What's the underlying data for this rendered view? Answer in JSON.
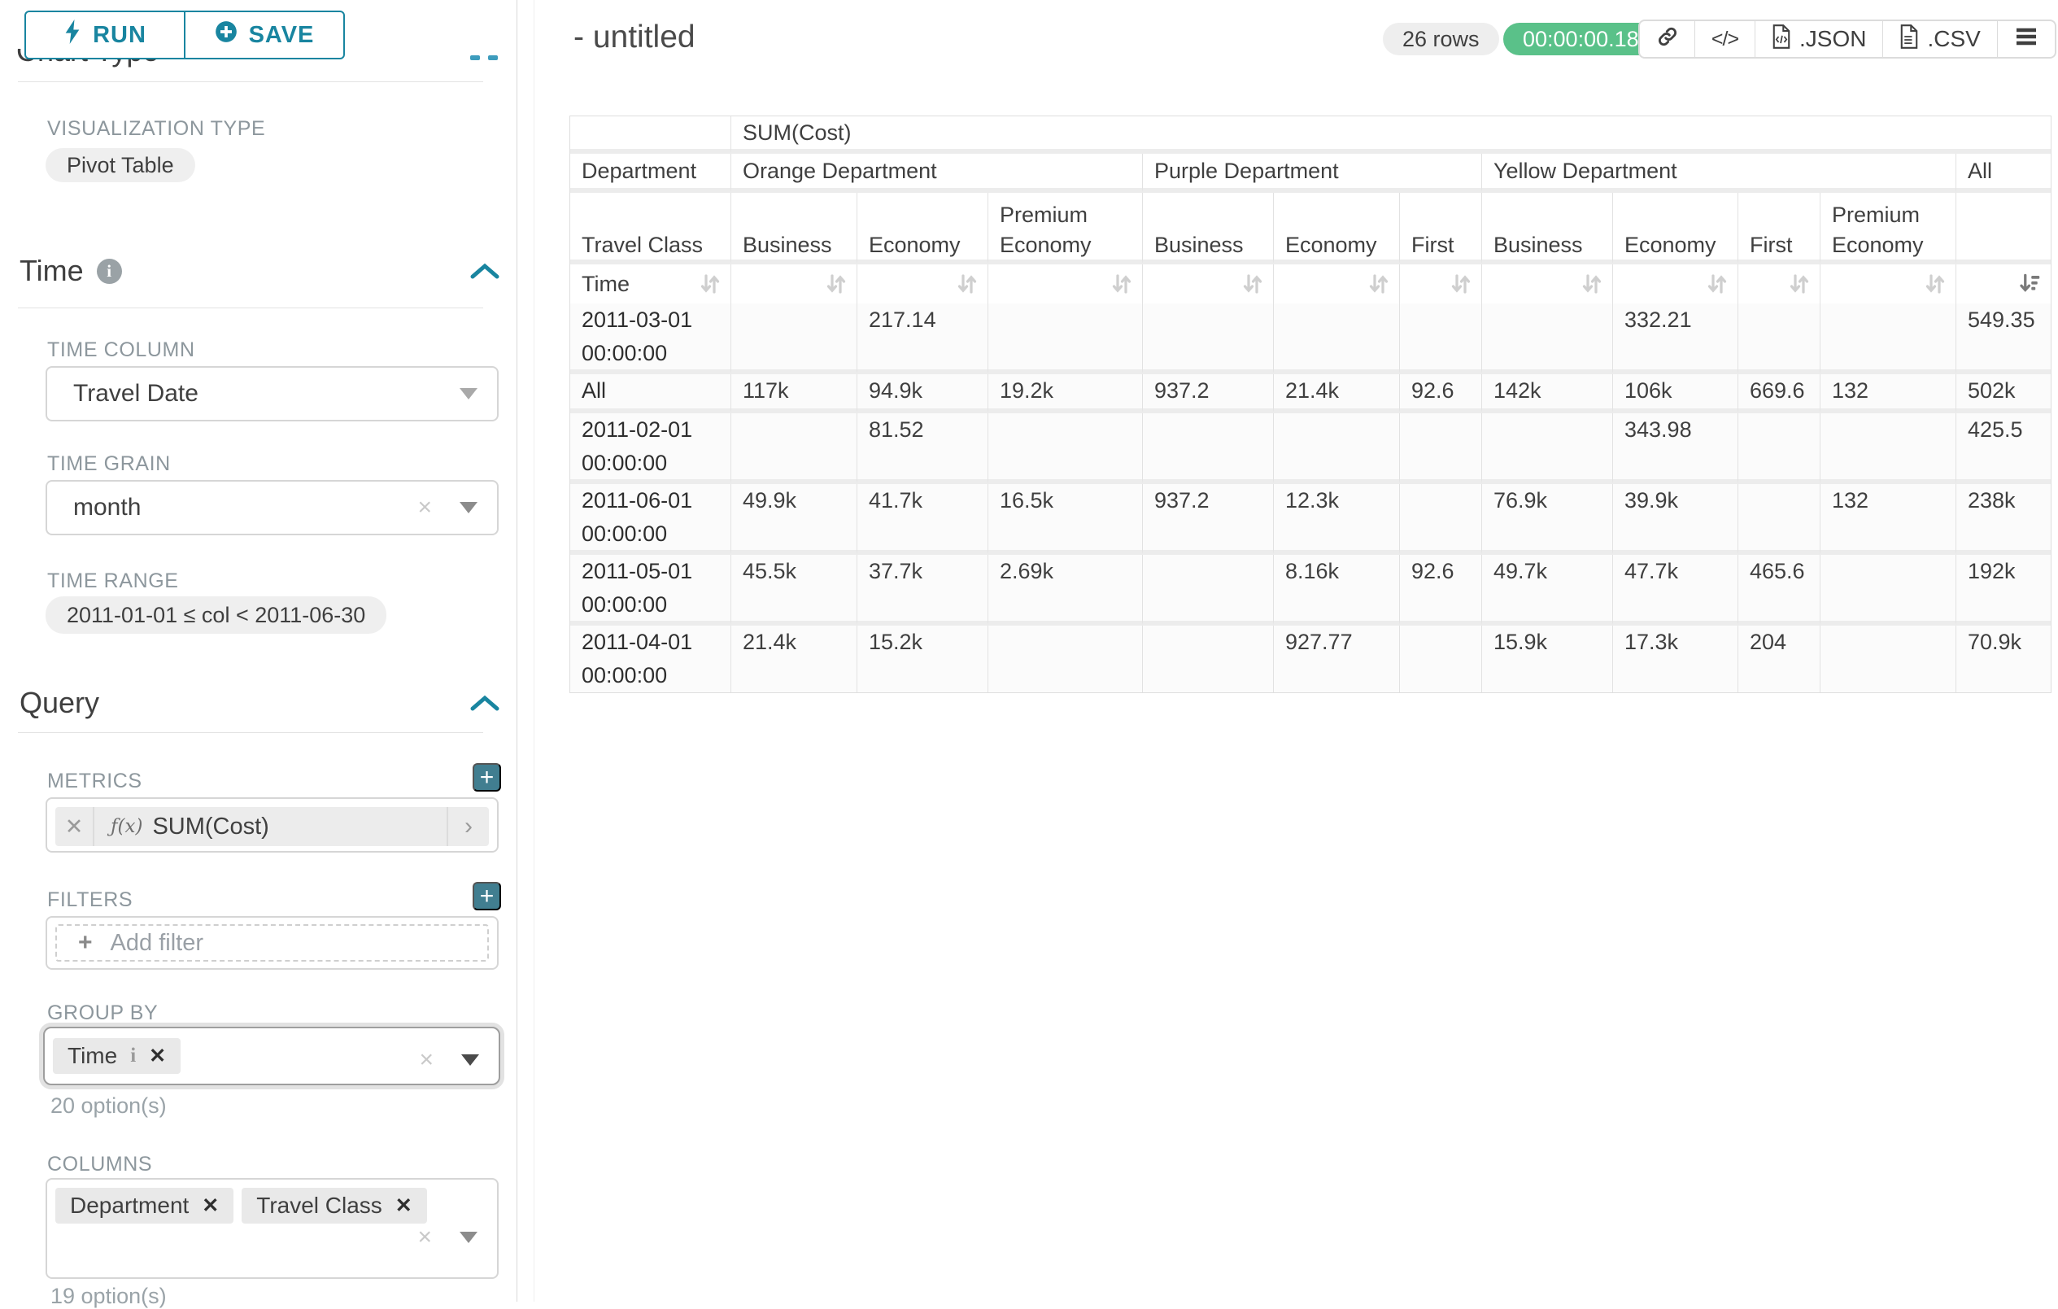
{
  "sidebar": {
    "run_label": "RUN",
    "save_label": "SAVE",
    "chart_type_heading": "Chart Type",
    "visualization_type_label": "VISUALIZATION TYPE",
    "visualization_type_value": "Pivot Table",
    "time_section": {
      "heading": "Time",
      "time_column_label": "TIME COLUMN",
      "time_column_value": "Travel Date",
      "time_grain_label": "TIME GRAIN",
      "time_grain_value": "month",
      "time_range_label": "TIME RANGE",
      "time_range_value": "2011-01-01 ≤ col < 2011-06-30"
    },
    "query_section": {
      "heading": "Query",
      "metrics_label": "METRICS",
      "metric_prefix": "ƒ(x)",
      "metric_value": "SUM(Cost)",
      "filters_label": "FILTERS",
      "add_filter_label": "Add filter",
      "group_by_label": "GROUP BY",
      "group_by_tags": [
        {
          "label": "Time",
          "info": true
        }
      ],
      "group_by_hint": "20 option(s)",
      "columns_label": "COLUMNS",
      "columns_tags": [
        {
          "label": "Department"
        },
        {
          "label": "Travel Class"
        }
      ],
      "columns_hint": "19 option(s)"
    }
  },
  "header": {
    "title": "- untitled",
    "row_count": "26 rows",
    "duration": "00:00:00.18",
    "json_label": ".JSON",
    "csv_label": ".CSV",
    "icons": [
      "link-icon",
      "embed-code-icon",
      "json-file-icon",
      "csv-file-icon",
      "menu-icon"
    ]
  },
  "chart_data": {
    "type": "table",
    "metric": "SUM(Cost)",
    "corner_row_label": "Department",
    "corner_class_label": "Travel Class",
    "row_dimension": "Time",
    "column_groups": [
      {
        "department": "Orange Department",
        "classes": [
          "Business",
          "Economy",
          "Premium Economy"
        ]
      },
      {
        "department": "Purple Department",
        "classes": [
          "Business",
          "Economy",
          "First"
        ]
      },
      {
        "department": "Yellow Department",
        "classes": [
          "Business",
          "Economy",
          "First",
          "Premium Economy"
        ]
      }
    ],
    "all_column_label": "All",
    "sorted_column": "All",
    "sort_direction": "desc",
    "rows": [
      {
        "label": "2011-03-01 00:00:00",
        "tall": true,
        "values": [
          "",
          "217.14",
          "",
          "",
          "",
          "",
          "",
          "332.21",
          "",
          "",
          "549.35"
        ]
      },
      {
        "label": "All",
        "tall": false,
        "values": [
          "117k",
          "94.9k",
          "19.2k",
          "937.2",
          "21.4k",
          "92.6",
          "142k",
          "106k",
          "669.6",
          "132",
          "502k"
        ]
      },
      {
        "label": "2011-02-01 00:00:00",
        "tall": true,
        "values": [
          "",
          "81.52",
          "",
          "",
          "",
          "",
          "",
          "343.98",
          "",
          "",
          "425.5"
        ]
      },
      {
        "label": "2011-06-01 00:00:00",
        "tall": true,
        "values": [
          "49.9k",
          "41.7k",
          "16.5k",
          "937.2",
          "12.3k",
          "",
          "76.9k",
          "39.9k",
          "",
          "132",
          "238k"
        ]
      },
      {
        "label": "2011-05-01 00:00:00",
        "tall": true,
        "values": [
          "45.5k",
          "37.7k",
          "2.69k",
          "",
          "8.16k",
          "92.6",
          "49.7k",
          "47.7k",
          "465.6",
          "",
          "192k"
        ]
      },
      {
        "label": "2011-04-01 00:00:00",
        "tall": true,
        "values": [
          "21.4k",
          "15.2k",
          "",
          "",
          "927.77",
          "",
          "15.9k",
          "17.3k",
          "204",
          "",
          "70.9k"
        ]
      }
    ]
  }
}
